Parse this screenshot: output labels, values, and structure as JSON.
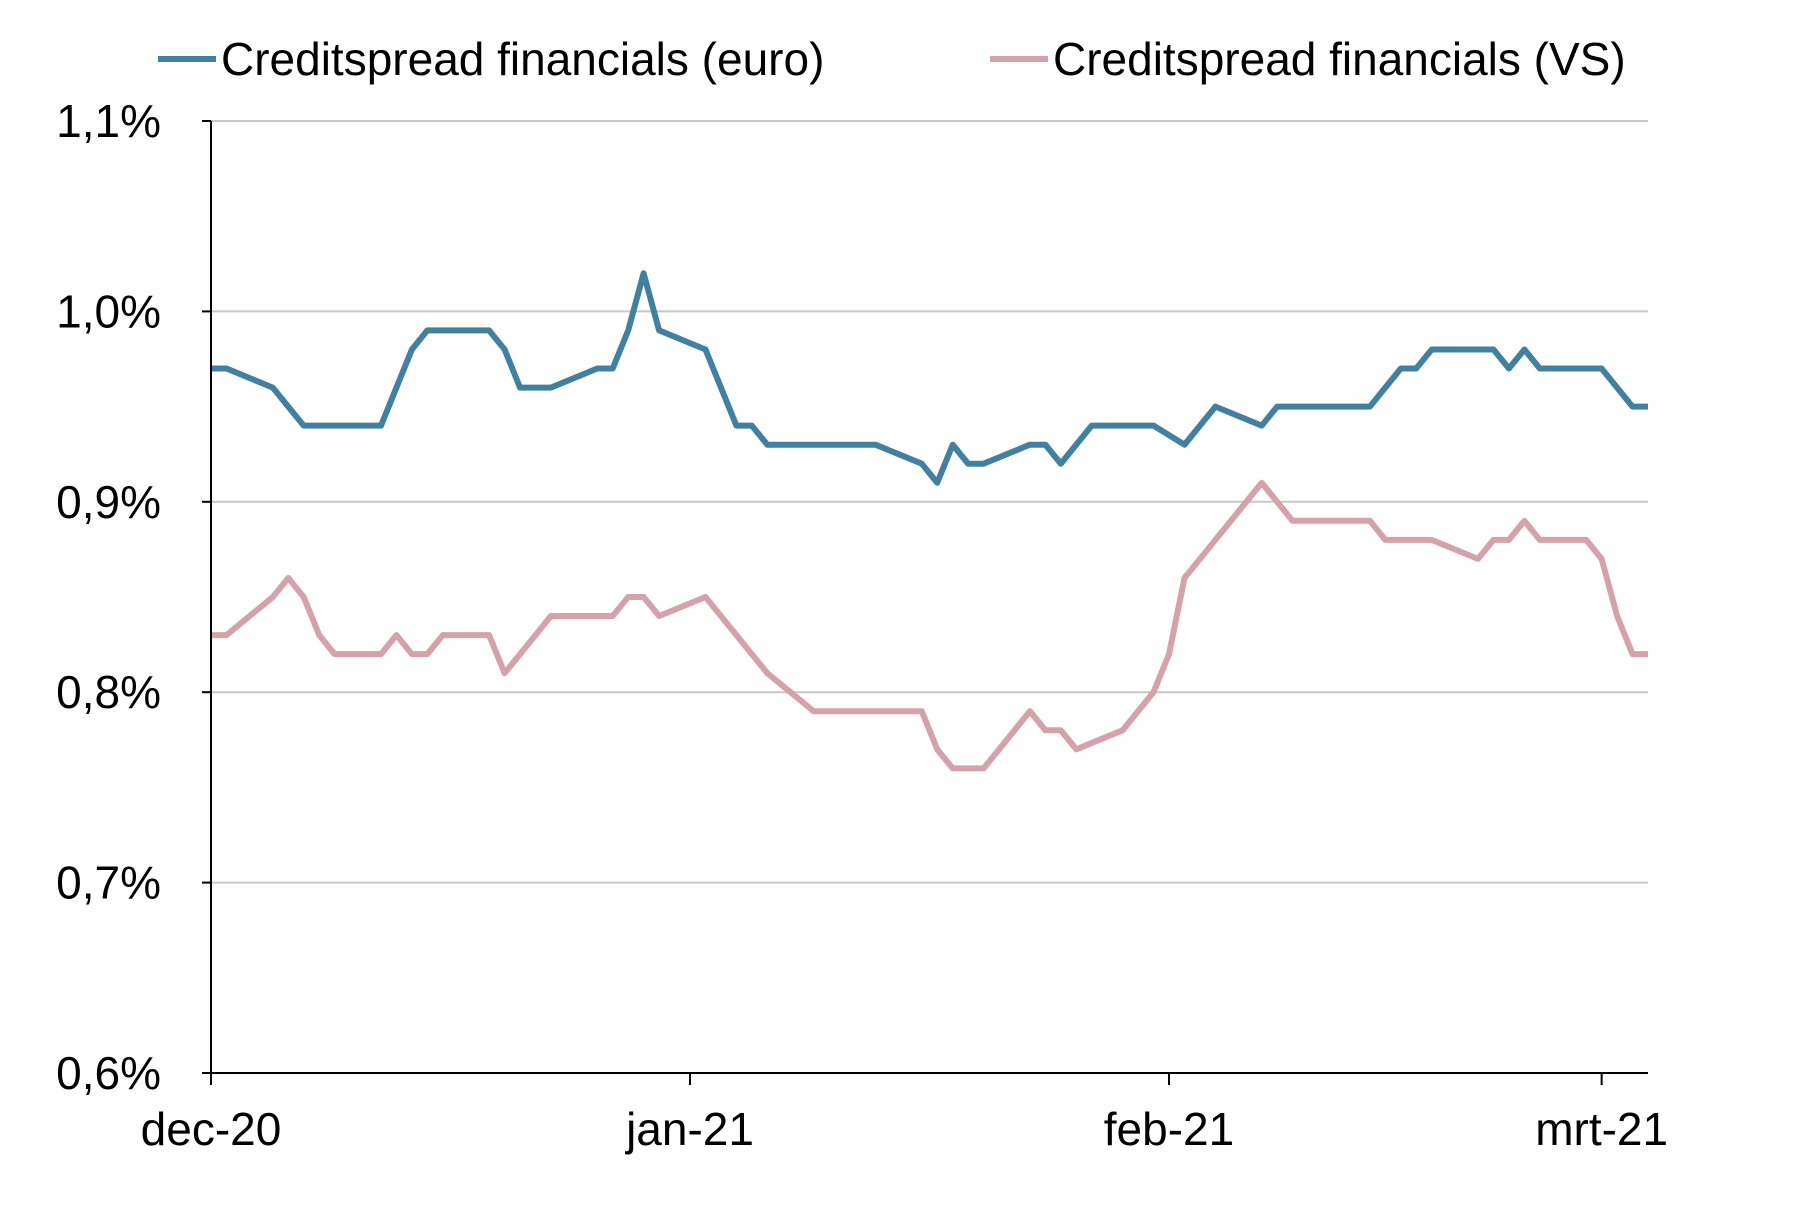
{
  "chart_data": {
    "type": "line",
    "title": "",
    "xlabel": "",
    "ylabel": "",
    "ylim": [
      0.6,
      1.1
    ],
    "y_ticks": [
      {
        "value": 0.6,
        "label": "0,6%"
      },
      {
        "value": 0.7,
        "label": "0,7%"
      },
      {
        "value": 0.8,
        "label": "0,8%"
      },
      {
        "value": 0.9,
        "label": "0,9%"
      },
      {
        "value": 1.0,
        "label": "1,0%"
      },
      {
        "value": 1.1,
        "label": "1,1%"
      }
    ],
    "grid": true,
    "legend_position": "top",
    "x_range": [
      "2020-12-01",
      "2021-03-04"
    ],
    "x_ticks": [
      {
        "date": "2020-12-01",
        "label": "dec-20"
      },
      {
        "date": "2021-01-01",
        "label": "jan-21"
      },
      {
        "date": "2021-02-01",
        "label": "feb-21"
      },
      {
        "date": "2021-03-01",
        "label": "mrt-21"
      }
    ],
    "series": [
      {
        "name": "Creditspread financials (euro)",
        "color": "#41809e",
        "points": [
          [
            "2020-12-01",
            0.97
          ],
          [
            "2020-12-02",
            0.97
          ],
          [
            "2020-12-05",
            0.96
          ],
          [
            "2020-12-07",
            0.94
          ],
          [
            "2020-12-09",
            0.94
          ],
          [
            "2020-12-12",
            0.94
          ],
          [
            "2020-12-12",
            0.94
          ],
          [
            "2020-12-14",
            0.98
          ],
          [
            "2020-12-15",
            0.99
          ],
          [
            "2020-12-16",
            0.99
          ],
          [
            "2020-12-19",
            0.99
          ],
          [
            "2020-12-20",
            0.98
          ],
          [
            "2020-12-21",
            0.96
          ],
          [
            "2020-12-23",
            0.96
          ],
          [
            "2020-12-26",
            0.97
          ],
          [
            "2020-12-27",
            0.97
          ],
          [
            "2020-12-28",
            0.99
          ],
          [
            "2020-12-29",
            1.02
          ],
          [
            "2020-12-30",
            0.99
          ],
          [
            "2021-01-02",
            0.98
          ],
          [
            "2021-01-04",
            0.94
          ],
          [
            "2021-01-05",
            0.94
          ],
          [
            "2021-01-06",
            0.93
          ],
          [
            "2021-01-08",
            0.93
          ],
          [
            "2021-01-13",
            0.93
          ],
          [
            "2021-01-16",
            0.92
          ],
          [
            "2021-01-17",
            0.91
          ],
          [
            "2021-01-18",
            0.93
          ],
          [
            "2021-01-19",
            0.92
          ],
          [
            "2021-01-20",
            0.92
          ],
          [
            "2021-01-23",
            0.93
          ],
          [
            "2021-01-24",
            0.93
          ],
          [
            "2021-01-25",
            0.92
          ],
          [
            "2021-01-27",
            0.94
          ],
          [
            "2021-01-29",
            0.94
          ],
          [
            "2021-01-31",
            0.94
          ],
          [
            "2021-02-02",
            0.93
          ],
          [
            "2021-02-04",
            0.95
          ],
          [
            "2021-02-07",
            0.94
          ],
          [
            "2021-02-08",
            0.95
          ],
          [
            "2021-02-10",
            0.95
          ],
          [
            "2021-02-14",
            0.95
          ],
          [
            "2021-02-16",
            0.97
          ],
          [
            "2021-02-17",
            0.97
          ],
          [
            "2021-02-18",
            0.98
          ],
          [
            "2021-02-22",
            0.98
          ],
          [
            "2021-02-23",
            0.97
          ],
          [
            "2021-02-24",
            0.98
          ],
          [
            "2021-02-25",
            0.97
          ],
          [
            "2021-02-27",
            0.97
          ],
          [
            "2021-03-01",
            0.97
          ],
          [
            "2021-03-03",
            0.95
          ],
          [
            "2021-03-04",
            0.95
          ]
        ]
      },
      {
        "name": "Creditspread financials (VS)",
        "color": "#d4a2a8",
        "points": [
          [
            "2020-12-01",
            0.83
          ],
          [
            "2020-12-02",
            0.83
          ],
          [
            "2020-12-05",
            0.85
          ],
          [
            "2020-12-06",
            0.86
          ],
          [
            "2020-12-07",
            0.85
          ],
          [
            "2020-12-08",
            0.83
          ],
          [
            "2020-12-09",
            0.82
          ],
          [
            "2020-12-12",
            0.82
          ],
          [
            "2020-12-13",
            0.83
          ],
          [
            "2020-12-14",
            0.82
          ],
          [
            "2020-12-15",
            0.82
          ],
          [
            "2020-12-16",
            0.83
          ],
          [
            "2020-12-19",
            0.83
          ],
          [
            "2020-12-20",
            0.81
          ],
          [
            "2020-12-22",
            0.83
          ],
          [
            "2020-12-23",
            0.84
          ],
          [
            "2020-12-27",
            0.84
          ],
          [
            "2020-12-28",
            0.85
          ],
          [
            "2020-12-29",
            0.85
          ],
          [
            "2020-12-30",
            0.84
          ],
          [
            "2021-01-02",
            0.85
          ],
          [
            "2021-01-05",
            0.82
          ],
          [
            "2021-01-06",
            0.81
          ],
          [
            "2021-01-09",
            0.79
          ],
          [
            "2021-01-15",
            0.79
          ],
          [
            "2021-01-16",
            0.79
          ],
          [
            "2021-01-17",
            0.77
          ],
          [
            "2021-01-18",
            0.76
          ],
          [
            "2021-01-20",
            0.76
          ],
          [
            "2021-01-22",
            0.78
          ],
          [
            "2021-01-23",
            0.79
          ],
          [
            "2021-01-24",
            0.78
          ],
          [
            "2021-01-25",
            0.78
          ],
          [
            "2021-01-26",
            0.77
          ],
          [
            "2021-01-29",
            0.78
          ],
          [
            "2021-01-31",
            0.8
          ],
          [
            "2021-02-01",
            0.82
          ],
          [
            "2021-02-02",
            0.86
          ],
          [
            "2021-02-04",
            0.88
          ],
          [
            "2021-02-06",
            0.9
          ],
          [
            "2021-02-07",
            0.91
          ],
          [
            "2021-02-09",
            0.89
          ],
          [
            "2021-02-14",
            0.89
          ],
          [
            "2021-02-15",
            0.88
          ],
          [
            "2021-02-18",
            0.88
          ],
          [
            "2021-02-21",
            0.87
          ],
          [
            "2021-02-22",
            0.88
          ],
          [
            "2021-02-23",
            0.88
          ],
          [
            "2021-02-24",
            0.89
          ],
          [
            "2021-02-25",
            0.88
          ],
          [
            "2021-02-28",
            0.88
          ],
          [
            "2021-03-01",
            0.87
          ],
          [
            "2021-03-02",
            0.84
          ],
          [
            "2021-03-03",
            0.82
          ],
          [
            "2021-03-04",
            0.82
          ]
        ]
      }
    ]
  }
}
